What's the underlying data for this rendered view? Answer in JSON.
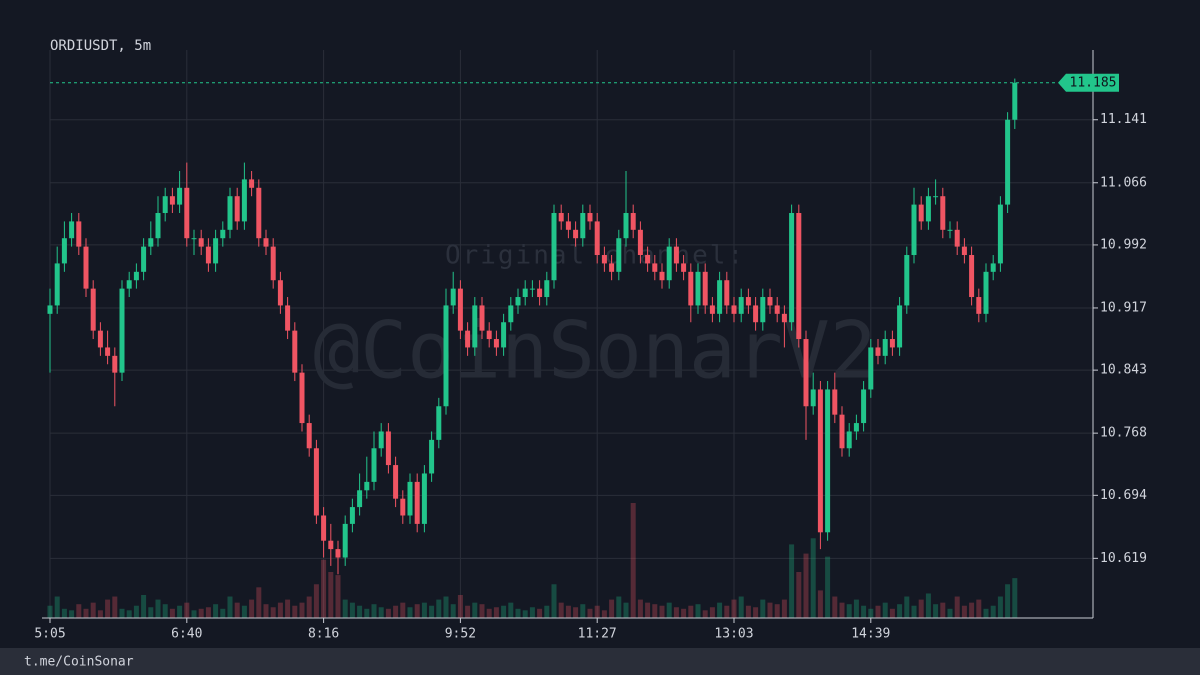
{
  "chart_data": {
    "type": "candlestick",
    "title": "ORDIUSDT, 5m",
    "footer": "t.me/CoinSonar",
    "watermark": "@CoinSonarV2",
    "watermark_caption": "Original channel:",
    "up_color": "#22c58b",
    "down_color": "#f05563",
    "grid": true,
    "last_price": 11.185,
    "ylim": [
      10.548,
      11.224
    ],
    "yticks": [
      10.619,
      10.694,
      10.768,
      10.843,
      10.917,
      10.992,
      11.066,
      11.141
    ],
    "categories": [
      "5:05",
      null,
      null,
      null,
      null,
      null,
      null,
      null,
      null,
      null,
      null,
      null,
      null,
      null,
      null,
      null,
      null,
      null,
      null,
      "6:40",
      null,
      null,
      null,
      null,
      null,
      null,
      null,
      null,
      null,
      null,
      null,
      null,
      null,
      null,
      null,
      null,
      null,
      null,
      "8:16",
      null,
      null,
      null,
      null,
      null,
      null,
      null,
      null,
      null,
      null,
      null,
      null,
      null,
      null,
      null,
      null,
      null,
      null,
      "9:52",
      null,
      null,
      null,
      null,
      null,
      null,
      null,
      null,
      null,
      null,
      null,
      null,
      null,
      null,
      null,
      null,
      null,
      null,
      "11:27",
      null,
      null,
      null,
      null,
      null,
      null,
      null,
      null,
      null,
      null,
      null,
      null,
      null,
      null,
      null,
      null,
      null,
      null,
      "13:03",
      null,
      null,
      null,
      null,
      null,
      null,
      null,
      null,
      null,
      null,
      null,
      null,
      null,
      null,
      null,
      null,
      null,
      null,
      "14:39",
      null,
      null,
      null,
      null,
      null,
      null,
      null,
      null,
      null,
      null,
      null,
      null,
      null,
      null,
      null,
      null,
      null,
      null,
      null,
      null
    ],
    "open": [
      10.91,
      10.92,
      10.97,
      11.0,
      11.02,
      10.99,
      10.94,
      10.89,
      10.87,
      10.86,
      10.84,
      10.94,
      10.95,
      10.96,
      10.99,
      11.0,
      11.03,
      11.05,
      11.04,
      11.06,
      11.0,
      11.0,
      10.99,
      10.97,
      11.0,
      11.01,
      11.05,
      11.02,
      11.07,
      11.06,
      11.0,
      10.99,
      10.95,
      10.92,
      10.89,
      10.84,
      10.78,
      10.75,
      10.67,
      10.64,
      10.63,
      10.62,
      10.66,
      10.68,
      10.7,
      10.71,
      10.75,
      10.77,
      10.73,
      10.69,
      10.67,
      10.71,
      10.66,
      10.72,
      10.76,
      10.8,
      10.92,
      10.94,
      10.89,
      10.87,
      10.92,
      10.89,
      10.88,
      10.87,
      10.9,
      10.92,
      10.93,
      10.94,
      10.94,
      10.93,
      10.95,
      11.03,
      11.02,
      11.01,
      11.0,
      11.03,
      11.02,
      10.98,
      10.97,
      10.96,
      11.0,
      11.03,
      11.01,
      10.98,
      10.97,
      10.96,
      10.95,
      10.99,
      10.97,
      10.96,
      10.92,
      10.96,
      10.92,
      10.91,
      10.95,
      10.92,
      10.91,
      10.93,
      10.92,
      10.9,
      10.93,
      10.92,
      10.91,
      10.9,
      11.03,
      10.88,
      10.8,
      10.82,
      10.65,
      10.82,
      10.79,
      10.75,
      10.77,
      10.78,
      10.82,
      10.87,
      10.86,
      10.88,
      10.87,
      10.92,
      10.98,
      11.04,
      11.02,
      11.05,
      11.05,
      11.01,
      11.01,
      10.99,
      10.98,
      10.93,
      10.91,
      10.96,
      10.97,
      11.04,
      11.141
    ],
    "high": [
      10.94,
      10.99,
      11.02,
      11.03,
      11.03,
      11.0,
      10.95,
      10.9,
      10.89,
      10.87,
      10.95,
      10.96,
      10.97,
      11.0,
      11.02,
      11.05,
      11.06,
      11.06,
      11.08,
      11.09,
      11.01,
      11.01,
      11.0,
      11.01,
      11.02,
      11.06,
      11.06,
      11.09,
      11.08,
      11.07,
      11.01,
      11.0,
      10.96,
      10.93,
      10.9,
      10.85,
      10.79,
      10.76,
      10.68,
      10.66,
      10.64,
      10.67,
      10.69,
      10.72,
      10.74,
      10.77,
      10.78,
      10.78,
      10.74,
      10.7,
      10.72,
      10.72,
      10.73,
      10.77,
      10.81,
      10.94,
      10.96,
      10.95,
      10.9,
      10.93,
      10.93,
      10.9,
      10.89,
      10.91,
      10.93,
      10.94,
      10.95,
      10.95,
      10.95,
      10.96,
      11.04,
      11.04,
      11.03,
      11.02,
      11.04,
      11.04,
      11.03,
      10.99,
      10.98,
      11.01,
      11.08,
      11.04,
      11.02,
      10.99,
      10.98,
      10.97,
      11.0,
      11.0,
      10.98,
      10.97,
      10.97,
      10.97,
      10.93,
      10.96,
      10.96,
      10.93,
      10.94,
      10.94,
      10.93,
      10.94,
      10.94,
      10.93,
      10.92,
      11.04,
      11.04,
      10.89,
      10.84,
      10.83,
      10.83,
      10.84,
      10.8,
      10.78,
      10.79,
      10.83,
      10.88,
      10.88,
      10.89,
      10.89,
      10.93,
      10.99,
      11.06,
      11.05,
      11.06,
      11.07,
      11.06,
      11.02,
      11.02,
      11.0,
      10.99,
      10.94,
      10.97,
      10.98,
      11.05,
      11.15,
      11.19
    ],
    "low": [
      10.84,
      10.91,
      10.96,
      10.99,
      10.98,
      10.93,
      10.88,
      10.86,
      10.85,
      10.8,
      10.83,
      10.93,
      10.94,
      10.95,
      10.98,
      10.99,
      11.02,
      11.03,
      11.03,
      10.99,
      10.98,
      10.98,
      10.96,
      10.96,
      10.99,
      11.0,
      11.01,
      11.01,
      11.05,
      10.99,
      10.98,
      10.94,
      10.91,
      10.88,
      10.83,
      10.77,
      10.74,
      10.66,
      10.62,
      10.61,
      10.6,
      10.61,
      10.65,
      10.67,
      10.69,
      10.7,
      10.74,
      10.72,
      10.68,
      10.66,
      10.66,
      10.65,
      10.65,
      10.71,
      10.75,
      10.79,
      10.91,
      10.88,
      10.86,
      10.86,
      10.88,
      10.87,
      10.86,
      10.86,
      10.89,
      10.91,
      10.92,
      10.93,
      10.92,
      10.92,
      10.94,
      11.01,
      11.0,
      10.99,
      10.99,
      11.01,
      10.97,
      10.96,
      10.95,
      10.95,
      10.99,
      11.0,
      10.97,
      10.96,
      10.95,
      10.94,
      10.94,
      10.96,
      10.95,
      10.9,
      10.91,
      10.91,
      10.9,
      10.9,
      10.91,
      10.9,
      10.9,
      10.91,
      10.89,
      10.89,
      10.91,
      10.9,
      10.87,
      10.89,
      10.87,
      10.76,
      10.79,
      10.63,
      10.64,
      10.78,
      10.74,
      10.74,
      10.76,
      10.77,
      10.81,
      10.85,
      10.85,
      10.86,
      10.86,
      10.91,
      10.97,
      11.01,
      11.01,
      11.04,
      11.0,
      11.0,
      10.98,
      10.97,
      10.92,
      10.9,
      10.9,
      10.95,
      10.96,
      11.03,
      11.13
    ],
    "close": [
      10.92,
      10.97,
      11.0,
      11.02,
      10.99,
      10.94,
      10.89,
      10.87,
      10.86,
      10.84,
      10.94,
      10.95,
      10.96,
      10.99,
      11.0,
      11.03,
      11.05,
      11.04,
      11.06,
      11.0,
      11.0,
      10.99,
      10.97,
      11.0,
      11.01,
      11.05,
      11.02,
      11.07,
      11.06,
      11.0,
      10.99,
      10.95,
      10.92,
      10.89,
      10.84,
      10.78,
      10.75,
      10.67,
      10.64,
      10.63,
      10.62,
      10.66,
      10.68,
      10.7,
      10.71,
      10.75,
      10.77,
      10.73,
      10.69,
      10.67,
      10.71,
      10.66,
      10.72,
      10.76,
      10.8,
      10.92,
      10.94,
      10.89,
      10.87,
      10.92,
      10.89,
      10.88,
      10.87,
      10.9,
      10.92,
      10.93,
      10.94,
      10.94,
      10.93,
      10.95,
      11.03,
      11.02,
      11.01,
      11.0,
      11.03,
      11.02,
      10.98,
      10.97,
      10.96,
      11.0,
      11.03,
      11.01,
      10.98,
      10.97,
      10.96,
      10.95,
      10.99,
      10.97,
      10.96,
      10.92,
      10.96,
      10.92,
      10.91,
      10.95,
      10.92,
      10.91,
      10.93,
      10.92,
      10.9,
      10.93,
      10.92,
      10.91,
      10.9,
      11.03,
      10.88,
      10.8,
      10.82,
      10.65,
      10.82,
      10.79,
      10.75,
      10.77,
      10.78,
      10.82,
      10.87,
      10.86,
      10.88,
      10.87,
      10.92,
      10.98,
      11.04,
      11.02,
      11.05,
      11.05,
      11.01,
      11.01,
      10.99,
      10.98,
      10.93,
      10.91,
      10.96,
      10.97,
      11.04,
      11.141,
      11.185
    ],
    "volume": [
      8,
      14,
      6,
      5,
      9,
      6,
      10,
      5,
      12,
      14,
      6,
      5,
      8,
      15,
      7,
      12,
      9,
      6,
      8,
      10,
      5,
      6,
      7,
      9,
      6,
      14,
      10,
      8,
      12,
      20,
      9,
      7,
      10,
      12,
      8,
      10,
      14,
      22,
      38,
      30,
      28,
      12,
      10,
      8,
      6,
      9,
      7,
      6,
      8,
      10,
      7,
      9,
      10,
      8,
      12,
      14,
      9,
      15,
      8,
      10,
      9,
      6,
      7,
      8,
      10,
      6,
      5,
      7,
      6,
      8,
      22,
      10,
      8,
      7,
      9,
      6,
      8,
      5,
      12,
      14,
      10,
      75,
      12,
      10,
      9,
      8,
      10,
      7,
      6,
      8,
      9,
      5,
      7,
      10,
      8,
      12,
      14,
      8,
      7,
      12,
      10,
      9,
      12,
      48,
      30,
      42,
      52,
      18,
      40,
      14,
      10,
      9,
      12,
      8,
      6,
      8,
      10,
      6,
      9,
      14,
      8,
      12,
      16,
      9,
      10,
      6,
      14,
      8,
      10,
      12,
      6,
      8,
      14,
      22,
      26
    ]
  }
}
